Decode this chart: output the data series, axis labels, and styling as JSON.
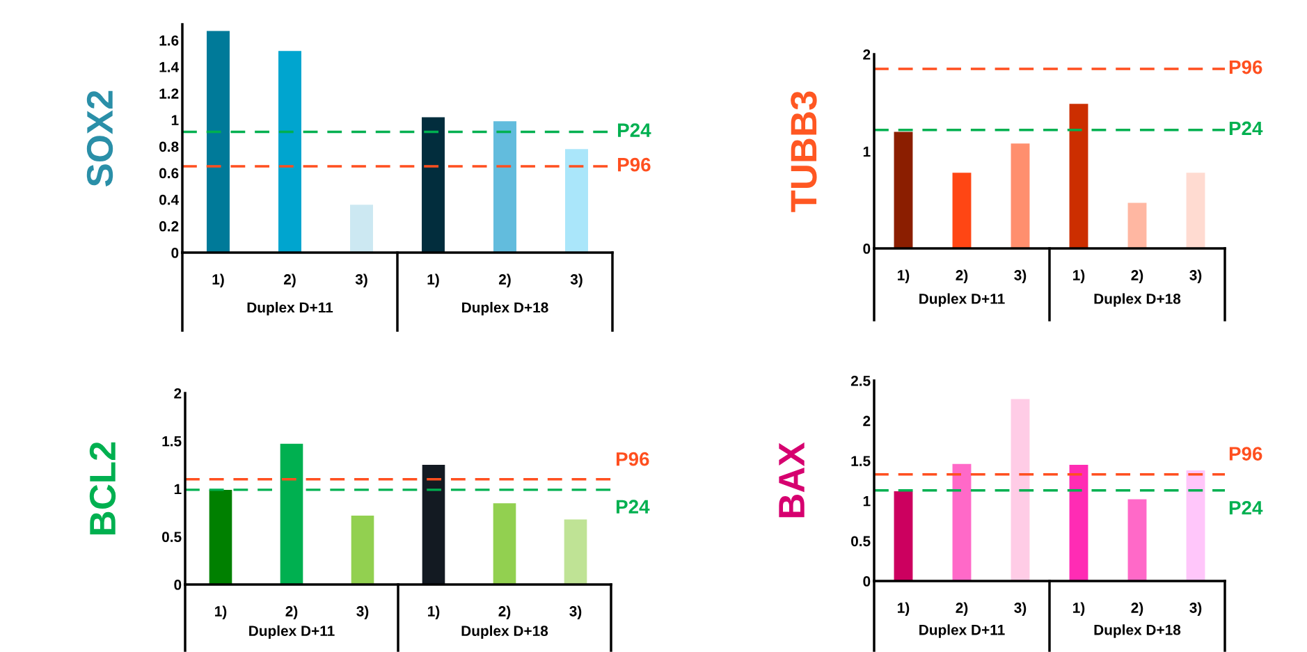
{
  "chart_data": [
    {
      "type": "bar",
      "ylabel": "SOX2",
      "categories": [
        "1)",
        "2)",
        "3)",
        "1)",
        "2)",
        "3)"
      ],
      "annotations": [
        "Duplex D+11",
        "Duplex D+18"
      ],
      "values": [
        1.67,
        1.52,
        0.36,
        1.02,
        0.99,
        0.78
      ],
      "colors": [
        "#007a99",
        "#00a5cf",
        "#cce8f2",
        "#022d3d",
        "#62bcdd",
        "#aae6fa"
      ],
      "ylim": [
        0,
        1.72
      ],
      "yticks": [
        0,
        0.2,
        0.4,
        0.6,
        0.8,
        1,
        1.2,
        1.4,
        1.6
      ],
      "grid": false,
      "ref_lines": [
        {
          "axis": "y",
          "value": 0.91,
          "label": "P24",
          "color": "#00b050",
          "line_style": "dashed"
        },
        {
          "axis": "y",
          "value": 0.65,
          "label": "P96",
          "color": "#ff4f1f",
          "line_style": "dashed"
        }
      ]
    },
    {
      "type": "bar",
      "ylabel": "TUBB3",
      "categories": [
        "1)",
        "2)",
        "3)",
        "1)",
        "2)",
        "3)"
      ],
      "annotations": [
        "Duplex D+11",
        "Duplex D+18"
      ],
      "values": [
        1.2,
        0.78,
        1.08,
        1.49,
        0.47,
        0.78
      ],
      "colors": [
        "#8b1e00",
        "#ff4614",
        "#ff8f6e",
        "#cc2e00",
        "#ffb7a2",
        "#ffdbd1"
      ],
      "ylim": [
        0,
        2
      ],
      "yticks": [
        0,
        1,
        2
      ],
      "grid": false,
      "ref_lines": [
        {
          "axis": "y",
          "value": 1.85,
          "label": "P96",
          "color": "#ff4f1f",
          "line_style": "dashed"
        },
        {
          "axis": "y",
          "value": 1.22,
          "label": "P24",
          "color": "#00b050",
          "line_style": "dashed"
        }
      ]
    },
    {
      "type": "bar",
      "ylabel": "BCL2",
      "categories": [
        "1)",
        "2)",
        "3)",
        "1)",
        "2)",
        "3)"
      ],
      "annotations": [
        "Duplex D+11",
        "Duplex D+18"
      ],
      "values": [
        0.99,
        1.47,
        0.72,
        1.25,
        0.85,
        0.68
      ],
      "colors": [
        "#008000",
        "#00b050",
        "#92d050",
        "#131a22",
        "#92d050",
        "#bfe395"
      ],
      "ylim": [
        0,
        2
      ],
      "yticks": [
        0,
        0.5,
        1,
        1.5,
        2
      ],
      "grid": false,
      "ref_lines": [
        {
          "axis": "y",
          "value": 1.1,
          "label": "P96",
          "color": "#ff4f1f",
          "line_style": "dashed"
        },
        {
          "axis": "y",
          "value": 0.99,
          "label": "P24",
          "color": "#00b050",
          "line_style": "dashed"
        }
      ]
    },
    {
      "type": "bar",
      "ylabel": "BAX",
      "categories": [
        "1)",
        "2)",
        "3)",
        "1)",
        "2)",
        "3)"
      ],
      "annotations": [
        "Duplex D+11",
        "Duplex D+18"
      ],
      "values": [
        1.12,
        1.46,
        2.27,
        1.45,
        1.02,
        1.38
      ],
      "colors": [
        "#cc005f",
        "#ff69c8",
        "#ffcce6",
        "#ff2cb4",
        "#ff69c8",
        "#ffc6fa"
      ],
      "ylim": [
        0,
        2.5
      ],
      "yticks": [
        0,
        0.5,
        1,
        1.5,
        2,
        2.5
      ],
      "grid": false,
      "ref_lines": [
        {
          "axis": "y",
          "value": 1.33,
          "label": "P96",
          "color": "#ff4f1f",
          "line_style": "dashed"
        },
        {
          "axis": "y",
          "value": 1.13,
          "label": "P24",
          "color": "#00b050",
          "line_style": "dashed"
        }
      ]
    }
  ]
}
